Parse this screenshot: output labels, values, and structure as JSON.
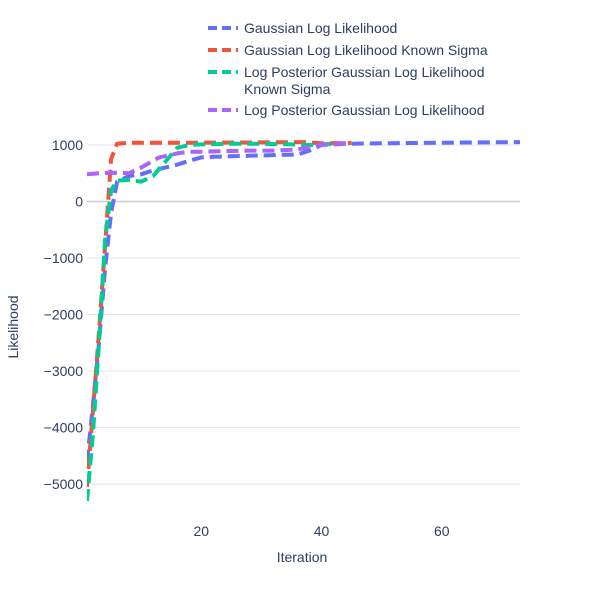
{
  "chart_data": {
    "type": "line",
    "xlabel": "Iteration",
    "ylabel": "Likelihood",
    "xlim": [
      1,
      73
    ],
    "ylim": [
      -5600,
      1300
    ],
    "x_ticks": [
      20,
      40,
      60
    ],
    "y_ticks": [
      1000,
      0,
      -1000,
      -2000,
      -3000,
      -4000,
      -5000
    ],
    "grid": "horizontal",
    "legend_position": "top-center",
    "line_style": "dashed",
    "series": [
      {
        "name": "Gaussian Log Likelihood",
        "color": "#636efa",
        "x": [
          1,
          2,
          3,
          4,
          5,
          6,
          8,
          10,
          12,
          14,
          16,
          18,
          20,
          22,
          25,
          28,
          32,
          36,
          38,
          40,
          44,
          50,
          60,
          73
        ],
        "y": [
          -4600,
          -3600,
          -2500,
          -1200,
          -200,
          350,
          450,
          480,
          550,
          600,
          650,
          720,
          780,
          790,
          800,
          810,
          820,
          830,
          900,
          1000,
          1020,
          1030,
          1040,
          1050
        ]
      },
      {
        "name": "Gaussian Log Likelihood Known Sigma",
        "color": "#ef553b",
        "x": [
          1,
          2,
          3,
          4,
          5,
          6,
          8,
          12,
          20,
          30,
          37,
          40,
          45
        ],
        "y": [
          -5050,
          -3700,
          -2300,
          -800,
          750,
          1020,
          1040,
          1040,
          1040,
          1045,
          1050,
          1030,
          1035
        ]
      },
      {
        "name": "Log Posterior Gaussian Log Likelihood Known Sigma",
        "color": "#00cc96",
        "x": [
          1,
          2,
          3,
          4,
          5,
          6,
          8,
          10,
          12,
          14,
          16,
          18,
          20,
          25,
          30,
          35,
          38,
          40,
          44
        ],
        "y": [
          -5300,
          -4100,
          -2500,
          -700,
          200,
          370,
          380,
          350,
          450,
          700,
          950,
          1000,
          1010,
          1020,
          1020,
          1010,
          1000,
          1010,
          1030
        ]
      },
      {
        "name": "Log Posterior Gaussian Log Likelihood",
        "color": "#ab63fa",
        "x": [
          1,
          3,
          5,
          8,
          10,
          13,
          16,
          18,
          20,
          24,
          28,
          32,
          36,
          38,
          40,
          44
        ],
        "y": [
          480,
          500,
          510,
          500,
          600,
          780,
          850,
          880,
          880,
          890,
          900,
          900,
          920,
          960,
          1010,
          1030
        ]
      }
    ]
  }
}
